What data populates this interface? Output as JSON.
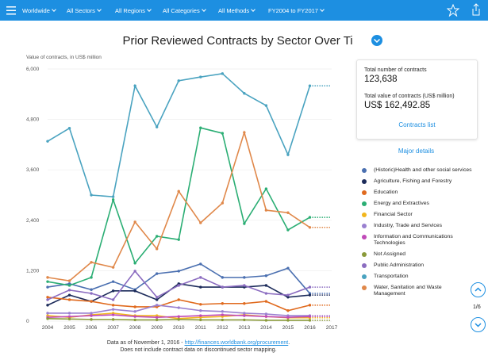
{
  "toolbar": {
    "filters": [
      "Worldwide",
      "All Sectors",
      "All Regions",
      "All Categories",
      "All Methods",
      "FY2004 to FY2017"
    ]
  },
  "chart_data": {
    "type": "line",
    "title": "Prior Reviewed Contracts by Sector Over Time",
    "y_label": "Value of contracts, in US$ million",
    "x": [
      2004,
      2005,
      2006,
      2007,
      2008,
      2009,
      2010,
      2011,
      2012,
      2013,
      2014,
      2015,
      2016
    ],
    "xlim": [
      2004,
      2017
    ],
    "xticks": [
      2004,
      2005,
      2006,
      2007,
      2008,
      2009,
      2010,
      2011,
      2012,
      2013,
      2014,
      2015,
      2016,
      2017
    ],
    "ylim": [
      0,
      6000
    ],
    "yticks": [
      0,
      {
        "value": 1200,
        "label": "1,200"
      },
      {
        "value": 2400,
        "label": "2,400"
      },
      {
        "value": 3600,
        "label": "3,600"
      },
      {
        "value": 4800,
        "label": "4,800"
      },
      {
        "value": 6000,
        "label": "6,000"
      }
    ],
    "grid": true,
    "series": [
      {
        "name": "(Historic)Health and other social services",
        "color": "#4a6fb0",
        "values": [
          810,
          890,
          750,
          940,
          750,
          1130,
          1190,
          1360,
          1040,
          1040,
          1080,
          1260,
          660
        ]
      },
      {
        "name": "Agriculture, Fishing and Forestry",
        "color": "#1c2b5a",
        "values": [
          380,
          620,
          470,
          720,
          720,
          510,
          890,
          810,
          810,
          810,
          850,
          570,
          620
        ]
      },
      {
        "name": "Education",
        "color": "#e06a1e",
        "values": [
          570,
          510,
          470,
          380,
          340,
          340,
          510,
          400,
          420,
          420,
          470,
          250,
          380
        ]
      },
      {
        "name": "Energy and Extractives",
        "color": "#2bae74",
        "values": [
          940,
          850,
          1040,
          2890,
          1380,
          2020,
          1940,
          4600,
          4470,
          2320,
          3150,
          2170,
          2470
        ]
      },
      {
        "name": "Financial Sector",
        "color": "#f2b61c",
        "values": [
          130,
          90,
          150,
          190,
          130,
          130,
          60,
          90,
          110,
          150,
          110,
          80,
          80
        ]
      },
      {
        "name": "Industry, Trade and Services",
        "color": "#9a80d0",
        "values": [
          190,
          190,
          190,
          280,
          230,
          380,
          320,
          250,
          230,
          190,
          170,
          130,
          130
        ]
      },
      {
        "name": "Information and Communications Technologies",
        "color": "#c04ab8",
        "values": [
          90,
          110,
          130,
          150,
          110,
          90,
          110,
          130,
          150,
          130,
          110,
          90,
          110
        ]
      },
      {
        "name": "Not Assigned",
        "color": "#8a9a3a",
        "values": [
          60,
          50,
          40,
          40,
          30,
          30,
          40,
          30,
          30,
          30,
          20,
          20,
          20
        ]
      },
      {
        "name": "Public Administration",
        "color": "#8b6cc0",
        "values": [
          510,
          740,
          660,
          510,
          1190,
          570,
          850,
          1040,
          810,
          850,
          660,
          620,
          810
        ]
      },
      {
        "name": "Transportation",
        "color": "#4aa3c0",
        "values": [
          4280,
          4590,
          3000,
          2960,
          5600,
          4620,
          5720,
          5810,
          5890,
          5420,
          5130,
          3960,
          5600
        ]
      },
      {
        "name": "Water, Sanitation and Waste Management",
        "color": "#e0884a",
        "values": [
          1040,
          960,
          1400,
          1280,
          2360,
          1720,
          3090,
          2340,
          2810,
          4490,
          2640,
          2580,
          2230
        ]
      }
    ]
  },
  "summary": {
    "count_label": "Total number of contracts",
    "count": "123,638",
    "value_label": "Total value of contracts (US$ million)",
    "value": "US$ 162,492.85",
    "link": "Contracts list",
    "details": "Major details"
  },
  "footer": {
    "line1": "Data as of November 1, 2016 - ",
    "url": "http://finances.worldbank.org/procurement",
    "line2": "Does not include contract data on discontinued sector mapping."
  },
  "pager": "1/6"
}
